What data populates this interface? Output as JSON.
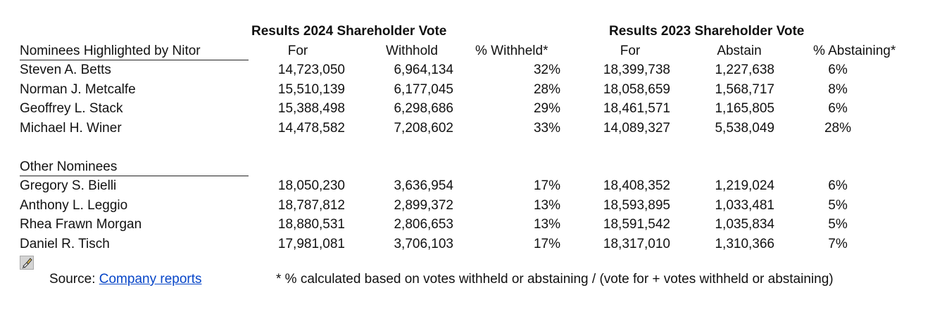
{
  "headers": {
    "group_2024": "Results 2024 Shareholder Vote",
    "group_2023": "Results 2023 Shareholder Vote",
    "section_highlighted": "Nominees Highlighted by Nitor",
    "section_other": "Other Nominees",
    "col_for_2024": "For",
    "col_withhold": "Withhold",
    "col_pct_withheld": "% Withheld*",
    "col_for_2023": "For",
    "col_abstain": "Abstain",
    "col_pct_abstaining": "% Abstaining*"
  },
  "highlighted": [
    {
      "name": "Steven A. Betts",
      "for24": "14,723,050",
      "withhold": "6,964,134",
      "pctw": "32%",
      "for23": "18,399,738",
      "abstain": "1,227,638",
      "pcta": "6%"
    },
    {
      "name": "Norman J. Metcalfe",
      "for24": "15,510,139",
      "withhold": "6,177,045",
      "pctw": "28%",
      "for23": "18,058,659",
      "abstain": "1,568,717",
      "pcta": "8%"
    },
    {
      "name": "Geoffrey L. Stack",
      "for24": "15,388,498",
      "withhold": "6,298,686",
      "pctw": "29%",
      "for23": "18,461,571",
      "abstain": "1,165,805",
      "pcta": "6%"
    },
    {
      "name": "Michael H. Winer",
      "for24": "14,478,582",
      "withhold": "7,208,602",
      "pctw": "33%",
      "for23": "14,089,327",
      "abstain": "5,538,049",
      "pcta": "28%"
    }
  ],
  "other": [
    {
      "name": "Gregory S. Bielli",
      "for24": "18,050,230",
      "withhold": "3,636,954",
      "pctw": "17%",
      "for23": "18,408,352",
      "abstain": "1,219,024",
      "pcta": "6%"
    },
    {
      "name": "Anthony L. Leggio",
      "for24": "18,787,812",
      "withhold": "2,899,372",
      "pctw": "13%",
      "for23": "18,593,895",
      "abstain": "1,033,481",
      "pcta": "5%"
    },
    {
      "name": "Rhea Frawn Morgan",
      "for24": "18,880,531",
      "withhold": "2,806,653",
      "pctw": "13%",
      "for23": "18,591,542",
      "abstain": "1,035,834",
      "pcta": "5%"
    },
    {
      "name": "Daniel R. Tisch",
      "for24": "17,981,081",
      "withhold": "3,706,103",
      "pctw": "17%",
      "for23": "18,317,010",
      "abstain": "1,310,366",
      "pcta": "7%"
    }
  ],
  "footer": {
    "source_label": "Source:",
    "source_link": "Company reports",
    "footnote": "*  % calculated based on votes withheld or abstaining / (vote for + votes withheld or abstaining)"
  },
  "icons": {
    "brush": "paintbrush-icon"
  }
}
